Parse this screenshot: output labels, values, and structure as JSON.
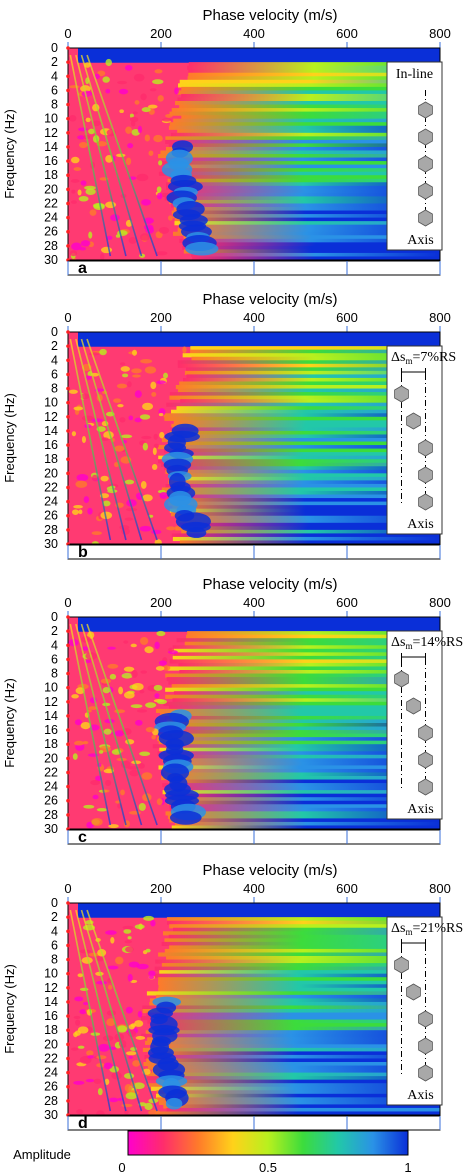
{
  "colors": {
    "colormap": [
      "#ff00cc",
      "#ff2c6c",
      "#ff7a2a",
      "#ffd21a",
      "#b8f01e",
      "#3cdc3c",
      "#22c8a8",
      "#2a92e6",
      "#0a2fd8"
    ],
    "sweep": [
      "#ffe61a",
      "#55e03a",
      "#0a3ae0"
    ],
    "marker": "#a8a8a8"
  },
  "colorbar": {
    "label": "Amplitude",
    "ticks": [
      "0",
      "0.5",
      "1"
    ]
  },
  "chart_data": [
    {
      "type": "heatmap",
      "title": "",
      "panel_label": "a",
      "xlabel": "Phase velocity (m/s)",
      "ylabel": "Frequency (Hz)",
      "x_ticks": [
        "0",
        "200",
        "400",
        "600",
        "800"
      ],
      "y_ticks": [
        "0",
        "2",
        "4",
        "6",
        "8",
        "10",
        "12",
        "14",
        "16",
        "18",
        "20",
        "22",
        "24",
        "26",
        "28",
        "30"
      ],
      "xlim": [
        0,
        800
      ],
      "ylim": [
        30,
        0
      ],
      "dispersion_curve": {
        "freq": [
          16,
          20,
          24,
          26,
          28
        ],
        "velocity": [
          230,
          238,
          252,
          262,
          280
        ]
      },
      "inset": {
        "title": "In-line",
        "caption": "Axis",
        "offsets": [
          0,
          0,
          0,
          0,
          0
        ]
      }
    },
    {
      "type": "heatmap",
      "title": "",
      "panel_label": "b",
      "xlabel": "Phase velocity (m/s)",
      "ylabel": "Frequency (Hz)",
      "x_ticks": [
        "0",
        "200",
        "400",
        "600",
        "800"
      ],
      "y_ticks": [
        "0",
        "2",
        "4",
        "6",
        "8",
        "10",
        "12",
        "14",
        "16",
        "18",
        "20",
        "22",
        "24",
        "26",
        "28",
        "30"
      ],
      "xlim": [
        0,
        800
      ],
      "ylim": [
        30,
        0
      ],
      "dispersion_curve": {
        "freq": [
          16,
          20,
          24,
          26,
          28
        ],
        "velocity": [
          228,
          232,
          240,
          248,
          262
        ]
      },
      "inset": {
        "title": "",
        "delta_prefix": "Δs",
        "delta_sub": "m",
        "delta_value": "=7%RS",
        "caption": "Axis",
        "offsets": [
          -1,
          -0.5,
          0,
          0,
          0
        ]
      }
    },
    {
      "type": "heatmap",
      "title": "",
      "panel_label": "c",
      "xlabel": "Phase velocity (m/s)",
      "ylabel": "Frequency (Hz)",
      "x_ticks": [
        "0",
        "200",
        "400",
        "600",
        "800"
      ],
      "y_ticks": [
        "0",
        "2",
        "4",
        "6",
        "8",
        "10",
        "12",
        "14",
        "16",
        "18",
        "20",
        "22",
        "24",
        "26",
        "28",
        "30"
      ],
      "xlim": [
        0,
        800
      ],
      "ylim": [
        30,
        0
      ],
      "dispersion_curve": {
        "freq": [
          16,
          20,
          24,
          26,
          28
        ],
        "velocity": [
          218,
          222,
          230,
          238,
          250
        ]
      },
      "inset": {
        "title": "",
        "delta_prefix": "Δs",
        "delta_sub": "m",
        "delta_value": "=14%RS",
        "caption": "Axis",
        "offsets": [
          -1,
          -0.5,
          0,
          0,
          0
        ]
      }
    },
    {
      "type": "heatmap",
      "title": "",
      "panel_label": "d",
      "xlabel": "Phase velocity (m/s)",
      "ylabel": "Frequency (Hz)",
      "x_ticks": [
        "0",
        "200",
        "400",
        "600",
        "800"
      ],
      "y_ticks": [
        "0",
        "2",
        "4",
        "6",
        "8",
        "10",
        "12",
        "14",
        "16",
        "18",
        "20",
        "22",
        "24",
        "26",
        "28",
        "30"
      ],
      "xlim": [
        0,
        800
      ],
      "ylim": [
        30,
        0
      ],
      "dispersion_curve": {
        "freq": [
          16,
          20,
          24,
          26,
          28
        ],
        "velocity": [
          192,
          196,
          204,
          212,
          226
        ]
      },
      "inset": {
        "title": "",
        "delta_prefix": "Δs",
        "delta_sub": "m",
        "delta_value": "=21%RS",
        "caption": "Axis",
        "offsets": [
          -1,
          -0.5,
          0,
          0,
          0
        ]
      }
    }
  ]
}
